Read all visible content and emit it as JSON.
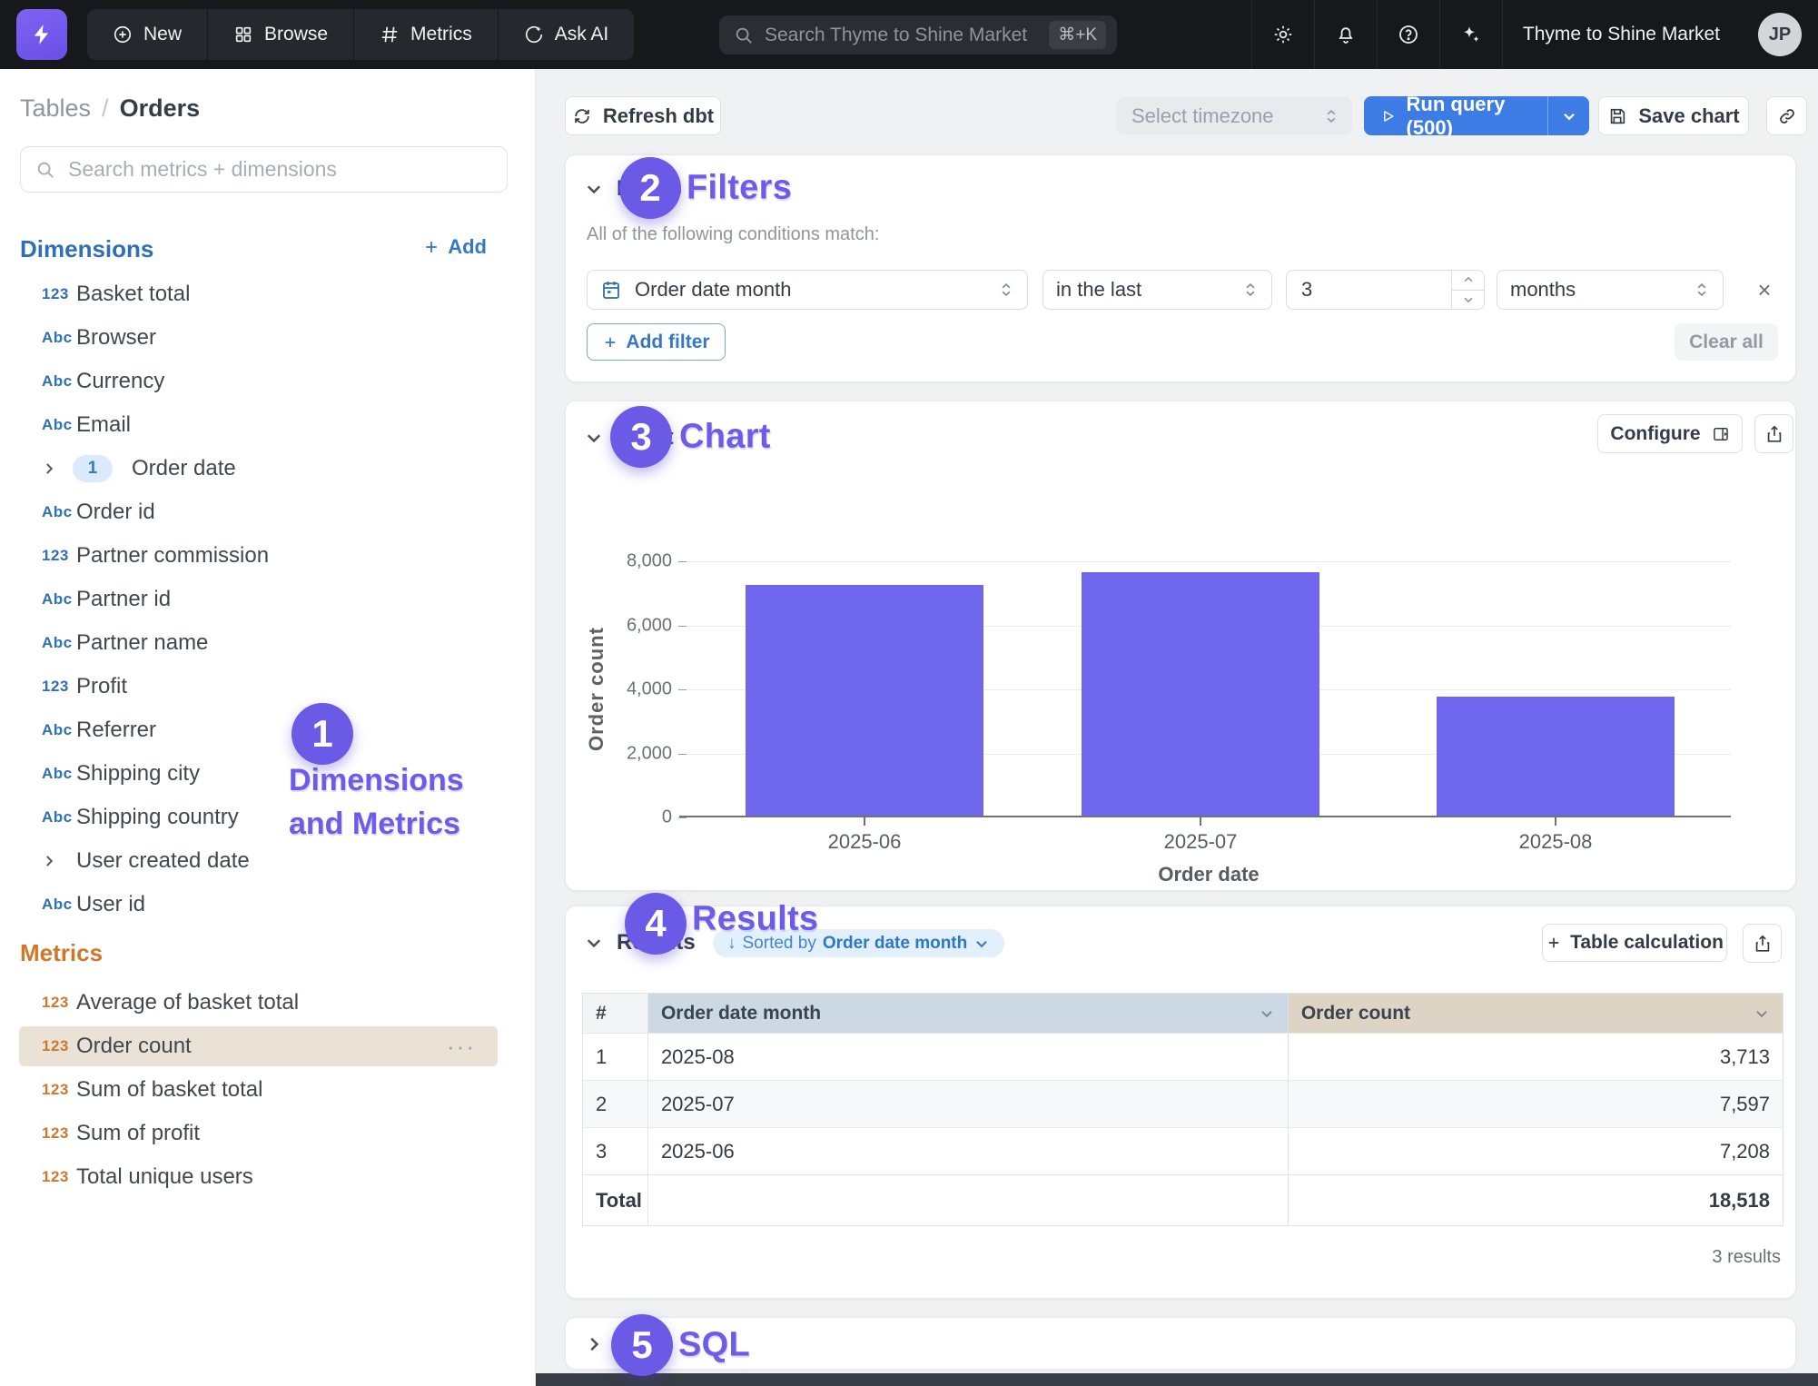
{
  "topbar": {
    "nav": [
      {
        "label": "New",
        "icon": "plus-circle-icon"
      },
      {
        "label": "Browse",
        "icon": "grid-icon"
      },
      {
        "label": "Metrics",
        "icon": "hash-icon"
      },
      {
        "label": "Ask AI",
        "icon": "chat-sparkle-icon"
      }
    ],
    "search": {
      "placeholder": "Search Thyme to Shine Market",
      "shortcut": "⌘+K"
    },
    "org_name": "Thyme to Shine Market",
    "avatar_initials": "JP"
  },
  "sidebar": {
    "breadcrumb": {
      "root": "Tables",
      "separator": "/",
      "current": "Orders"
    },
    "search_placeholder": "Search metrics + dimensions",
    "dimensions": {
      "header": "Dimensions",
      "add_label": "Add",
      "items": [
        {
          "label": "Basket total",
          "type": "123"
        },
        {
          "label": "Browser",
          "type": "Abc"
        },
        {
          "label": "Currency",
          "type": "Abc"
        },
        {
          "label": "Email",
          "type": "Abc"
        },
        {
          "label": "Order date",
          "type": "group",
          "badge": "1"
        },
        {
          "label": "Order id",
          "type": "Abc"
        },
        {
          "label": "Partner commission",
          "type": "123"
        },
        {
          "label": "Partner id",
          "type": "Abc"
        },
        {
          "label": "Partner name",
          "type": "Abc"
        },
        {
          "label": "Profit",
          "type": "123"
        },
        {
          "label": "Referrer",
          "type": "Abc"
        },
        {
          "label": "Shipping city",
          "type": "Abc"
        },
        {
          "label": "Shipping country",
          "type": "Abc"
        },
        {
          "label": "User created date",
          "type": "group"
        },
        {
          "label": "User id",
          "type": "Abc"
        }
      ]
    },
    "metrics": {
      "header": "Metrics",
      "items": [
        {
          "label": "Average of basket total",
          "type": "123"
        },
        {
          "label": "Order count",
          "type": "123",
          "selected": true
        },
        {
          "label": "Sum of basket total",
          "type": "123"
        },
        {
          "label": "Sum of profit",
          "type": "123"
        },
        {
          "label": "Total unique users",
          "type": "123"
        }
      ]
    }
  },
  "toolbar": {
    "refresh_label": "Refresh dbt",
    "timezone_placeholder": "Select timezone",
    "run_label": "Run query (500)",
    "save_label": "Save chart"
  },
  "filters": {
    "header": "Filters",
    "condition_text": "All of the following conditions match:",
    "rule": {
      "field": "Order date month",
      "operator": "in the last",
      "value": "3",
      "unit": "months"
    },
    "add_label": "Add filter",
    "clear_label": "Clear all"
  },
  "chart": {
    "header": "Chart",
    "configure_label": "Configure"
  },
  "chart_data": {
    "type": "bar",
    "categories": [
      "2025-06",
      "2025-07",
      "2025-08"
    ],
    "values": [
      7208,
      7597,
      3713
    ],
    "title": "",
    "xlabel": "Order date",
    "ylabel": "Order count",
    "ylim": [
      0,
      8000
    ],
    "yticks": [
      "8,000",
      "6,000",
      "4,000",
      "2,000",
      "0"
    ],
    "bar_color": "#6f66ee",
    "grid": true,
    "legend": "none"
  },
  "results": {
    "header": "Results",
    "sorted_prefix": "Sorted by",
    "sorted_field": "Order date month",
    "table_calc_label": "Table calculation",
    "footer": "3 results",
    "table": {
      "columns": [
        "#",
        "Order date month",
        "Order count"
      ],
      "rows": [
        {
          "index": "1",
          "date": "2025-08",
          "count": "3,713"
        },
        {
          "index": "2",
          "date": "2025-07",
          "count": "7,597"
        },
        {
          "index": "3",
          "date": "2025-06",
          "count": "7,208"
        }
      ],
      "total_label": "Total",
      "total_value": "18,518"
    }
  },
  "sql": {
    "header": "SQL"
  },
  "annotations": {
    "n1": {
      "num": "1",
      "label": "Dimensions and Metrics"
    },
    "n2": {
      "num": "2",
      "label": "Filters"
    },
    "n3": {
      "num": "3",
      "label": "Chart"
    },
    "n4": {
      "num": "4",
      "label": "Results"
    },
    "n5": {
      "num": "5",
      "label": "SQL"
    }
  },
  "icons": {
    "more_glyph": "···",
    "close_glyph": "×",
    "sort_arrow": "↓"
  },
  "colors": {
    "accent_purple": "#6c5ce8",
    "bar_purple": "#6f66ee",
    "run_button_blue": "#3d7ce4",
    "dimension_blue": "#2e6fb7",
    "metric_orange": "#d0782a",
    "selected_row_beige": "#ebe2d6",
    "header_col_blue": "#cdd8e5",
    "header_col_tan": "#ded4c5"
  }
}
